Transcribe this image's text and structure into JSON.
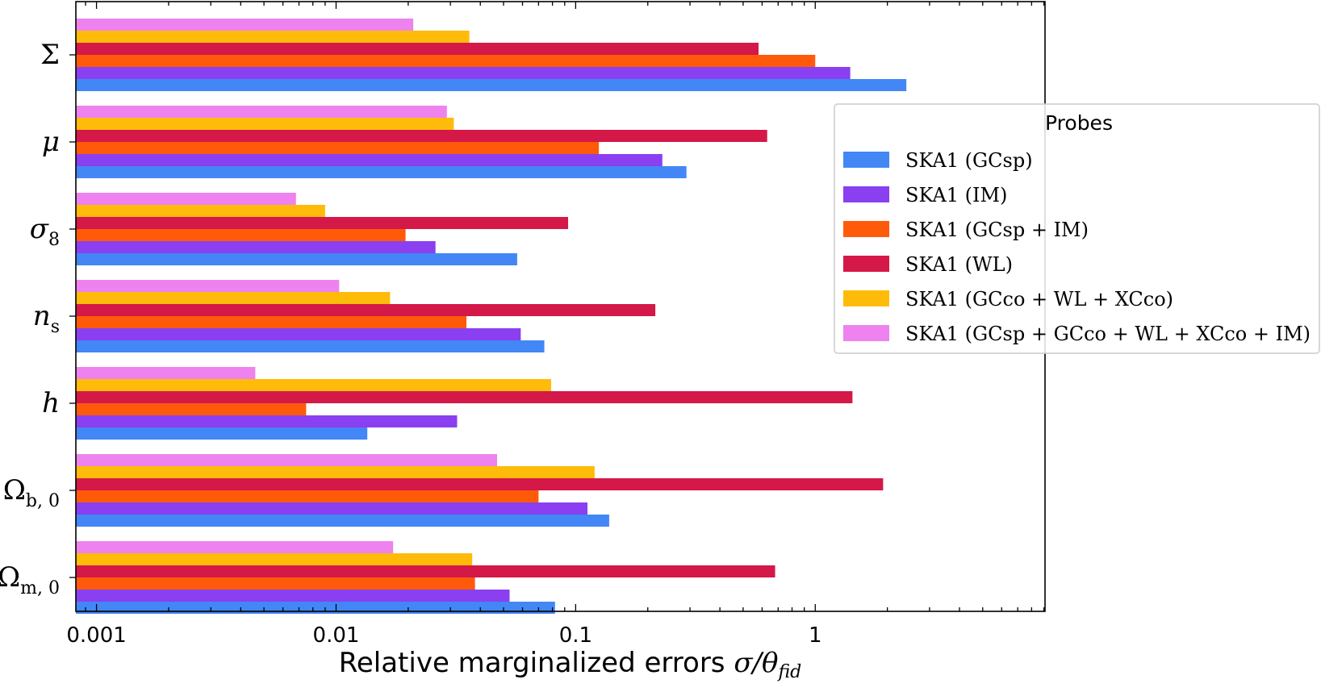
{
  "chart_data": {
    "type": "bar",
    "orientation": "horizontal",
    "xscale": "log",
    "xlim": [
      0.00082,
      9.1
    ],
    "xticks": [
      {
        "value": 0.001,
        "label": "0.001"
      },
      {
        "value": 0.01,
        "label": "0.01"
      },
      {
        "value": 0.1,
        "label": "0.1"
      },
      {
        "value": 1,
        "label": "1"
      }
    ],
    "xlabel": {
      "text": "Relative marginalized errors ",
      "math": "σ/θ",
      "sub": "fid"
    },
    "categories": [
      {
        "symbol": "Σ",
        "sub": ""
      },
      {
        "symbol": "μ",
        "sub": ""
      },
      {
        "symbol": "σ",
        "sub": "8"
      },
      {
        "symbol": "n",
        "sub": "s"
      },
      {
        "symbol": "h",
        "sub": ""
      },
      {
        "symbol": "Ω",
        "sub": "b, 0"
      },
      {
        "symbol": "Ω",
        "sub": "m, 0"
      }
    ],
    "legend": {
      "title": "Probes",
      "placement": "center-right"
    },
    "series": [
      {
        "name": "SKA1 (GCsp)",
        "color": "#4287f5",
        "values": [
          2.4,
          0.29,
          0.057,
          0.074,
          0.0135,
          0.138,
          0.082
        ]
      },
      {
        "name": "SKA1 (IM)",
        "color": "#8a3ff0",
        "values": [
          1.4,
          0.23,
          0.026,
          0.059,
          0.032,
          0.112,
          0.053
        ]
      },
      {
        "name": "SKA1 (GCsp + IM)",
        "color": "#ff5a0a",
        "values": [
          1.0,
          0.125,
          0.0195,
          0.035,
          0.0075,
          0.07,
          0.038
        ]
      },
      {
        "name": "SKA1 (WL)",
        "color": "#d41848",
        "values": [
          0.58,
          0.63,
          0.093,
          0.215,
          1.43,
          1.92,
          0.68
        ]
      },
      {
        "name": "SKA1 (GCco + WL + XCco)",
        "color": "#ffbb0a",
        "values": [
          0.036,
          0.031,
          0.009,
          0.0168,
          0.079,
          0.12,
          0.037
        ]
      },
      {
        "name": "SKA1 (GCsp + GCco + WL + XCco + IM)",
        "color": "#ee82ee",
        "values": [
          0.021,
          0.029,
          0.0068,
          0.0103,
          0.0046,
          0.047,
          0.0173
        ]
      }
    ]
  }
}
